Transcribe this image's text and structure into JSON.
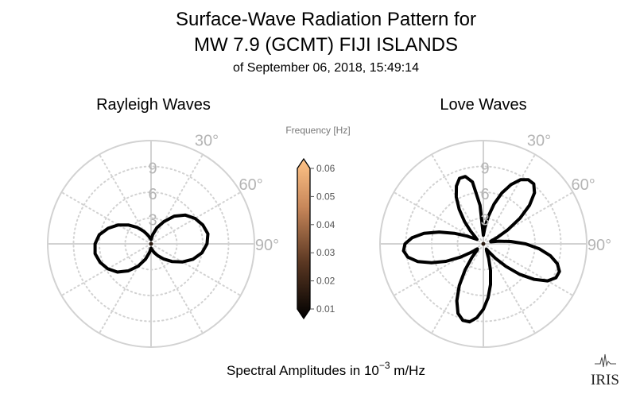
{
  "chart_data": {
    "type": "polar",
    "title": [
      "Surface-Wave Radiation Pattern for",
      "MW 7.9 (GCMT) FIJI ISLANDS"
    ],
    "subtitle": "of September 06, 2018, 15:49:14",
    "footer": {
      "text": "Spectral Amplitudes in ",
      "base": "10",
      "exponent": "−3",
      "unit": " m/Hz"
    },
    "colorbar": {
      "label": "Frequency [Hz]",
      "range": [
        0.01,
        0.06
      ],
      "ticks": [
        "0.06",
        "0.05",
        "0.04",
        "0.03",
        "0.02",
        "0.01"
      ]
    },
    "radial_max": 12,
    "radial_ticks": [
      3,
      6,
      9
    ],
    "radial_tick_labels": [
      "3",
      "6",
      "9"
    ],
    "angle_tick_labels": [
      "30°",
      "60°",
      "90°"
    ],
    "panels": [
      {
        "title": "Rayleigh Waves",
        "series": [
          {
            "points": [
              [
                0,
                0.5
              ],
              [
                10,
                1.1
              ],
              [
                20,
                2.0
              ],
              [
                30,
                3.0
              ],
              [
                40,
                4.2
              ],
              [
                50,
                5.2
              ],
              [
                60,
                5.9
              ],
              [
                70,
                6.4
              ],
              [
                80,
                6.7
              ],
              [
                90,
                6.5
              ],
              [
                100,
                6.0
              ],
              [
                110,
                5.2
              ],
              [
                120,
                4.2
              ],
              [
                130,
                3.2
              ],
              [
                140,
                2.3
              ],
              [
                150,
                1.6
              ],
              [
                160,
                1.1
              ],
              [
                170,
                0.7
              ],
              [
                180,
                0.5
              ],
              [
                190,
                1.0
              ],
              [
                200,
                1.9
              ],
              [
                210,
                3.0
              ],
              [
                220,
                4.1
              ],
              [
                230,
                5.1
              ],
              [
                240,
                5.8
              ],
              [
                250,
                6.3
              ],
              [
                260,
                6.6
              ],
              [
                270,
                6.5
              ],
              [
                280,
                6.1
              ],
              [
                290,
                5.3
              ],
              [
                300,
                4.4
              ],
              [
                310,
                3.4
              ],
              [
                320,
                2.5
              ],
              [
                330,
                1.7
              ],
              [
                340,
                1.1
              ],
              [
                350,
                0.7
              ]
            ]
          }
        ]
      },
      {
        "title": "Love Waves",
        "series": [
          {
            "points": [
              [
                0,
                1.0
              ],
              [
                5,
                1.8
              ],
              [
                10,
                3.2
              ],
              [
                15,
                4.8
              ],
              [
                20,
                6.3
              ],
              [
                25,
                7.6
              ],
              [
                30,
                8.6
              ],
              [
                35,
                9.1
              ],
              [
                40,
                9.1
              ],
              [
                45,
                8.4
              ],
              [
                50,
                7.0
              ],
              [
                55,
                5.2
              ],
              [
                60,
                3.3
              ],
              [
                65,
                1.8
              ],
              [
                70,
                0.9
              ],
              [
                75,
                0.9
              ],
              [
                80,
                1.8
              ],
              [
                85,
                3.2
              ],
              [
                90,
                4.9
              ],
              [
                95,
                6.5
              ],
              [
                100,
                7.9
              ],
              [
                105,
                8.9
              ],
              [
                110,
                9.4
              ],
              [
                115,
                9.3
              ],
              [
                120,
                8.6
              ],
              [
                125,
                7.2
              ],
              [
                130,
                5.5
              ],
              [
                135,
                3.7
              ],
              [
                140,
                2.2
              ],
              [
                145,
                1.2
              ],
              [
                150,
                0.7
              ],
              [
                155,
                0.9
              ],
              [
                160,
                1.8
              ],
              [
                165,
                3.2
              ],
              [
                170,
                4.8
              ],
              [
                175,
                6.3
              ],
              [
                180,
                7.6
              ],
              [
                185,
                8.6
              ],
              [
                190,
                9.2
              ],
              [
                195,
                9.2
              ],
              [
                200,
                8.6
              ],
              [
                205,
                7.3
              ],
              [
                210,
                5.6
              ],
              [
                215,
                3.7
              ],
              [
                220,
                2.1
              ],
              [
                225,
                1.0
              ],
              [
                230,
                0.9
              ],
              [
                235,
                1.7
              ],
              [
                240,
                3.1
              ],
              [
                245,
                4.8
              ],
              [
                250,
                6.4
              ],
              [
                255,
                7.9
              ],
              [
                260,
                8.9
              ],
              [
                265,
                9.3
              ],
              [
                270,
                9.1
              ],
              [
                275,
                8.3
              ],
              [
                280,
                7.0
              ],
              [
                285,
                5.3
              ],
              [
                290,
                3.6
              ],
              [
                295,
                2.2
              ],
              [
                300,
                1.3
              ],
              [
                305,
                0.9
              ],
              [
                310,
                1.2
              ],
              [
                315,
                2.1
              ],
              [
                320,
                3.4
              ],
              [
                325,
                4.9
              ],
              [
                330,
                6.3
              ],
              [
                335,
                7.4
              ],
              [
                340,
                8.1
              ],
              [
                345,
                8.1
              ],
              [
                350,
                7.3
              ],
              [
                355,
                4.5
              ]
            ]
          }
        ]
      }
    ]
  },
  "logo": "IRIS",
  "colors": {
    "grid": "#d2d2d2",
    "curve": "#000000",
    "cbar_low": "#000000",
    "cbar_high": "#ffc487"
  }
}
